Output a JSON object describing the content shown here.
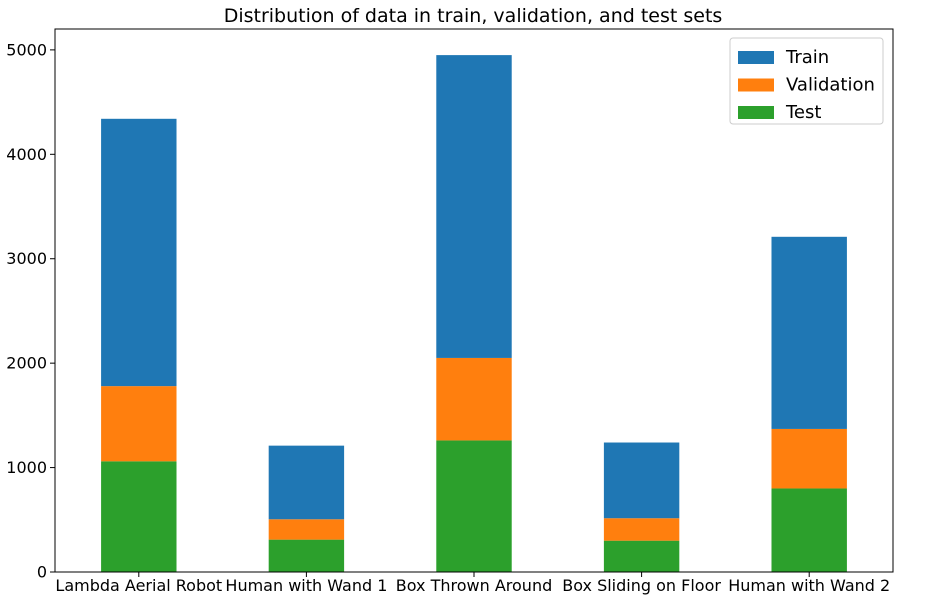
{
  "chart_data": {
    "type": "bar",
    "stacked": true,
    "title": "Distribution of data in train, validation, and test sets",
    "xlabel": "",
    "ylabel": "",
    "categories": [
      "Lambda Aerial Robot",
      "Human with Wand 1",
      "Box Thrown Around",
      "Box Sliding on Floor",
      "Human with Wand 2"
    ],
    "series": [
      {
        "name": "Test",
        "color": "#2ca02c",
        "values": [
          1060,
          310,
          1260,
          300,
          800
        ]
      },
      {
        "name": "Validation",
        "color": "#ff7f0e",
        "values": [
          720,
          195,
          790,
          215,
          570
        ]
      },
      {
        "name": "Train",
        "color": "#1f77b4",
        "values": [
          2560,
          705,
          2900,
          725,
          1840
        ]
      }
    ],
    "legend_order": [
      "Train",
      "Validation",
      "Test"
    ],
    "legend_position": "top-right",
    "ylim": [
      0,
      5200
    ],
    "yticks": [
      0,
      1000,
      2000,
      3000,
      4000,
      5000
    ],
    "grid": false
  }
}
